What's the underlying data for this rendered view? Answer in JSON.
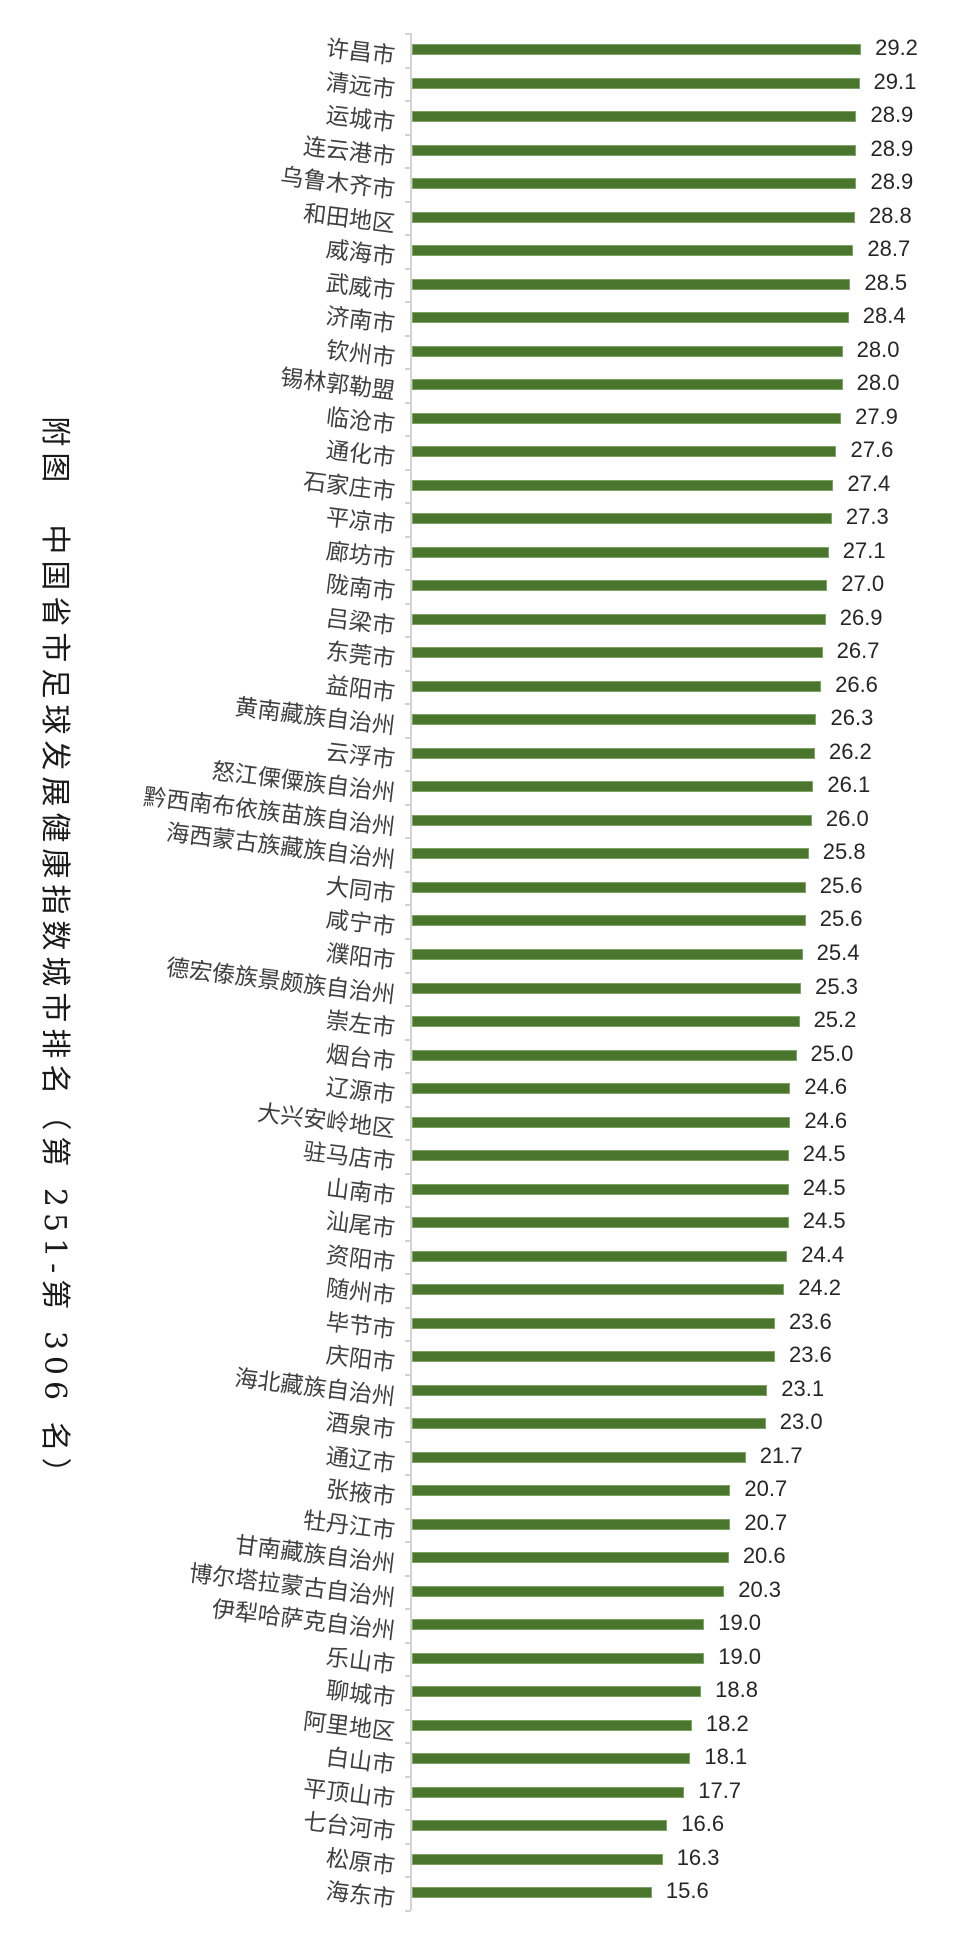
{
  "title": "附图　中国省市足球发展健康指数城市排名（第 251-第 306 名）",
  "colors": {
    "bar": "#4a752c",
    "axis": "#d3d3d3",
    "label": "#3f3f3f",
    "value": "#262626"
  },
  "chart_data": {
    "type": "bar",
    "orientation": "horizontal",
    "title": "附图 中国省市足球发展健康指数城市排名（第 251-第 306 名）",
    "xlabel": "",
    "ylabel": "",
    "xlim": [
      0,
      36
    ],
    "grid": false,
    "legend": null,
    "data_labels": true,
    "categories": [
      "许昌市",
      "清远市",
      "运城市",
      "连云港市",
      "乌鲁木齐市",
      "和田地区",
      "威海市",
      "武威市",
      "济南市",
      "钦州市",
      "锡林郭勒盟",
      "临沧市",
      "通化市",
      "石家庄市",
      "平凉市",
      "廊坊市",
      "陇南市",
      "吕梁市",
      "东莞市",
      "益阳市",
      "黄南藏族自治州",
      "云浮市",
      "怒江傈僳族自治州",
      "黔西南布依族苗族自治州",
      "海西蒙古族藏族自治州",
      "大同市",
      "咸宁市",
      "濮阳市",
      "德宏傣族景颇族自治州",
      "崇左市",
      "烟台市",
      "辽源市",
      "大兴安岭地区",
      "驻马店市",
      "山南市",
      "汕尾市",
      "资阳市",
      "随州市",
      "毕节市",
      "庆阳市",
      "海北藏族自治州",
      "酒泉市",
      "通辽市",
      "张掖市",
      "牡丹江市",
      "甘南藏族自治州",
      "博尔塔拉蒙古自治州",
      "伊犁哈萨克自治州",
      "乐山市",
      "聊城市",
      "阿里地区",
      "白山市",
      "平顶山市",
      "七台河市",
      "松原市",
      "海东市"
    ],
    "values": [
      29.2,
      29.1,
      28.9,
      28.9,
      28.9,
      28.8,
      28.7,
      28.5,
      28.4,
      28.0,
      28.0,
      27.9,
      27.6,
      27.4,
      27.3,
      27.1,
      27.0,
      26.9,
      26.7,
      26.6,
      26.3,
      26.2,
      26.1,
      26.0,
      25.8,
      25.6,
      25.6,
      25.4,
      25.3,
      25.2,
      25.0,
      24.6,
      24.6,
      24.5,
      24.5,
      24.5,
      24.4,
      24.2,
      23.6,
      23.6,
      23.1,
      23.0,
      21.7,
      20.7,
      20.7,
      20.6,
      20.3,
      19.0,
      19.0,
      18.8,
      18.2,
      18.1,
      17.7,
      16.6,
      16.3,
      15.6
    ],
    "value_labels": [
      "29.2",
      "29.1",
      "28.9",
      "28.9",
      "28.9",
      "28.8",
      "28.7",
      "28.5",
      "28.4",
      "28.0",
      "28.0",
      "27.9",
      "27.6",
      "27.4",
      "27.3",
      "27.1",
      "27.0",
      "26.9",
      "26.7",
      "26.6",
      "26.3",
      "26.2",
      "26.1",
      "26.0",
      "25.8",
      "25.6",
      "25.6",
      "25.4",
      "25.3",
      "25.2",
      "25.0",
      "24.6",
      "24.6",
      "24.5",
      "24.5",
      "24.5",
      "24.4",
      "24.2",
      "23.6",
      "23.6",
      "23.1",
      "23.0",
      "21.7",
      "20.7",
      "20.7",
      "20.6",
      "20.3",
      "19.0",
      "19.0",
      "18.8",
      "18.2",
      "18.1",
      "17.7",
      "16.6",
      "16.3",
      "15.6"
    ]
  }
}
